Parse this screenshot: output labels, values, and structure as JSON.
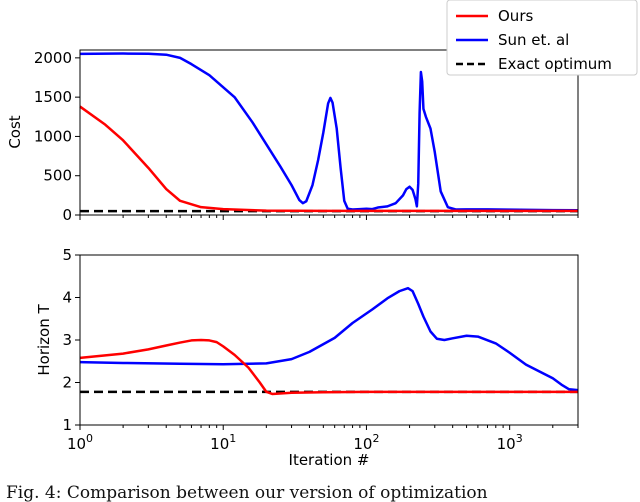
{
  "chart_data": [
    {
      "type": "line",
      "title": "",
      "xlabel": "",
      "ylabel": "Cost",
      "xscale": "log",
      "xlim": [
        1,
        3000
      ],
      "ylim": [
        0,
        2100
      ],
      "yticks": [
        0,
        500,
        1000,
        1500,
        2000
      ],
      "ytick_labels": [
        "0",
        "500",
        "1000",
        "1500",
        "2000"
      ],
      "grid": false,
      "legend_position": "top-right, above plot",
      "series": [
        {
          "name": "Ours",
          "color": "#ff0000",
          "style": "solid",
          "points": [
            [
              1,
              1380
            ],
            [
              1.5,
              1150
            ],
            [
              2,
              950
            ],
            [
              3,
              600
            ],
            [
              4,
              330
            ],
            [
              5,
              180
            ],
            [
              7,
              100
            ],
            [
              10,
              75
            ],
            [
              20,
              55
            ],
            [
              50,
              52
            ],
            [
              100,
              52
            ],
            [
              1000,
              52
            ],
            [
              3000,
              52
            ]
          ]
        },
        {
          "name": "Sun et. al",
          "color": "#0000ff",
          "style": "solid",
          "points": [
            [
              1,
              2050
            ],
            [
              2,
              2055
            ],
            [
              3,
              2053
            ],
            [
              4,
              2040
            ],
            [
              5,
              2000
            ],
            [
              6,
              1920
            ],
            [
              8,
              1780
            ],
            [
              12,
              1500
            ],
            [
              16,
              1180
            ],
            [
              20,
              900
            ],
            [
              25,
              620
            ],
            [
              30,
              380
            ],
            [
              34,
              190
            ],
            [
              36,
              150
            ],
            [
              38,
              175
            ],
            [
              42,
              380
            ],
            [
              46,
              700
            ],
            [
              50,
              1050
            ],
            [
              54,
              1420
            ],
            [
              56,
              1490
            ],
            [
              58,
              1430
            ],
            [
              62,
              1100
            ],
            [
              66,
              600
            ],
            [
              70,
              180
            ],
            [
              74,
              80
            ],
            [
              80,
              70
            ],
            [
              90,
              75
            ],
            [
              100,
              80
            ],
            [
              110,
              75
            ],
            [
              120,
              95
            ],
            [
              140,
              110
            ],
            [
              160,
              150
            ],
            [
              180,
              250
            ],
            [
              190,
              330
            ],
            [
              200,
              360
            ],
            [
              210,
              320
            ],
            [
              220,
              200
            ],
            [
              225,
              110
            ],
            [
              230,
              400
            ],
            [
              235,
              1300
            ],
            [
              240,
              1820
            ],
            [
              245,
              1700
            ],
            [
              250,
              1350
            ],
            [
              260,
              1250
            ],
            [
              280,
              1100
            ],
            [
              300,
              800
            ],
            [
              330,
              300
            ],
            [
              370,
              100
            ],
            [
              420,
              70
            ],
            [
              500,
              72
            ],
            [
              700,
              72
            ],
            [
              1000,
              68
            ],
            [
              2000,
              62
            ],
            [
              3000,
              60
            ]
          ]
        },
        {
          "name": "Exact optimum",
          "color": "#000000",
          "style": "dashed",
          "points": [
            [
              1,
              50
            ],
            [
              3000,
              50
            ]
          ]
        }
      ]
    },
    {
      "type": "line",
      "title": "",
      "xlabel": "Iteration #",
      "ylabel": "Horizon T",
      "xscale": "log",
      "xlim": [
        1,
        3000
      ],
      "ylim": [
        1,
        5
      ],
      "yticks": [
        1,
        2,
        3,
        4,
        5
      ],
      "ytick_labels": [
        "1",
        "2",
        "3",
        "4",
        "5"
      ],
      "xticks": [
        1,
        10,
        100,
        1000
      ],
      "xtick_labels": [
        "10^0",
        "10^1",
        "10^2",
        "10^3"
      ],
      "grid": false,
      "series": [
        {
          "name": "Ours",
          "color": "#ff0000",
          "style": "solid",
          "points": [
            [
              1,
              2.58
            ],
            [
              2,
              2.68
            ],
            [
              3,
              2.78
            ],
            [
              4,
              2.87
            ],
            [
              5,
              2.94
            ],
            [
              6,
              2.99
            ],
            [
              7,
              3.0
            ],
            [
              8,
              2.99
            ],
            [
              9,
              2.95
            ],
            [
              10,
              2.85
            ],
            [
              12,
              2.65
            ],
            [
              15,
              2.35
            ],
            [
              18,
              2.0
            ],
            [
              20,
              1.78
            ],
            [
              22,
              1.73
            ],
            [
              30,
              1.76
            ],
            [
              50,
              1.77
            ],
            [
              100,
              1.78
            ],
            [
              1000,
              1.78
            ],
            [
              3000,
              1.78
            ]
          ]
        },
        {
          "name": "Sun et. al",
          "color": "#0000ff",
          "style": "solid",
          "points": [
            [
              1,
              2.48
            ],
            [
              2,
              2.46
            ],
            [
              5,
              2.44
            ],
            [
              10,
              2.43
            ],
            [
              20,
              2.45
            ],
            [
              30,
              2.55
            ],
            [
              40,
              2.72
            ],
            [
              60,
              3.05
            ],
            [
              80,
              3.4
            ],
            [
              110,
              3.72
            ],
            [
              140,
              3.98
            ],
            [
              170,
              4.15
            ],
            [
              195,
              4.22
            ],
            [
              210,
              4.15
            ],
            [
              230,
              3.85
            ],
            [
              250,
              3.55
            ],
            [
              280,
              3.2
            ],
            [
              310,
              3.03
            ],
            [
              350,
              3.0
            ],
            [
              400,
              3.04
            ],
            [
              500,
              3.1
            ],
            [
              600,
              3.08
            ],
            [
              800,
              2.92
            ],
            [
              1000,
              2.7
            ],
            [
              1300,
              2.42
            ],
            [
              1700,
              2.22
            ],
            [
              2000,
              2.1
            ],
            [
              2300,
              1.95
            ],
            [
              2600,
              1.84
            ],
            [
              3000,
              1.82
            ]
          ]
        },
        {
          "name": "Exact optimum",
          "color": "#000000",
          "style": "dashed",
          "points": [
            [
              1,
              1.78
            ],
            [
              3000,
              1.78
            ]
          ]
        }
      ]
    }
  ],
  "caption": "Fig. 4: Comparison between our version of optimization"
}
